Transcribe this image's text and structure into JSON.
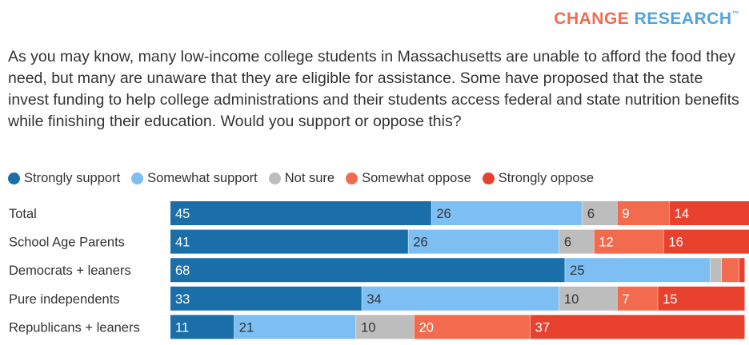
{
  "header": {
    "brand_part1": "CHANGE",
    "brand_part2": "RESEARCH",
    "brand_tm": "™"
  },
  "question": "As you may know, many low-income college students in Massachusetts are unable to afford the food they need, but many are unaware that they are eligible for assistance. Some have proposed that the state invest funding to help college administrations and their students access federal and state nutrition benefits while finishing their education. Would you support or oppose this?",
  "colors": {
    "strongly_support": "#1a6fa8",
    "somewhat_support": "#7dbef3",
    "not_sure": "#bdbdbd",
    "somewhat_oppose": "#f26b4e",
    "strongly_oppose": "#e8422f",
    "brand_orange": "#f26b4e",
    "brand_blue": "#4fa3e0"
  },
  "chart_data": {
    "type": "bar",
    "orientation": "horizontal",
    "stacked": true,
    "categories": [
      "Total",
      "School Age Parents",
      "Democrats + leaners",
      "Pure independents",
      "Republicans + leaners"
    ],
    "series": [
      {
        "name": "Strongly support",
        "color": "#1a6fa8",
        "values": [
          45,
          41,
          68,
          33,
          11
        ],
        "labels": [
          "45",
          "41",
          "68",
          "33",
          "11"
        ]
      },
      {
        "name": "Somewhat support",
        "color": "#7dbef3",
        "values": [
          26,
          26,
          25,
          34,
          21
        ],
        "labels": [
          "26",
          "26",
          "25",
          "34",
          "21"
        ]
      },
      {
        "name": "Not sure",
        "color": "#bdbdbd",
        "values": [
          6,
          6,
          2,
          10,
          10
        ],
        "labels": [
          "6",
          "6",
          "",
          "10",
          "10"
        ]
      },
      {
        "name": "Somewhat oppose",
        "color": "#f26b4e",
        "values": [
          9,
          12,
          3,
          7,
          20
        ],
        "labels": [
          "9",
          "12",
          "",
          "7",
          "20"
        ]
      },
      {
        "name": "Strongly oppose",
        "color": "#e8422f",
        "values": [
          14,
          16,
          1,
          15,
          37
        ],
        "labels": [
          "14",
          "16",
          "",
          "15",
          "37"
        ]
      }
    ],
    "xlim": [
      0,
      99
    ],
    "legend_position": "top"
  }
}
